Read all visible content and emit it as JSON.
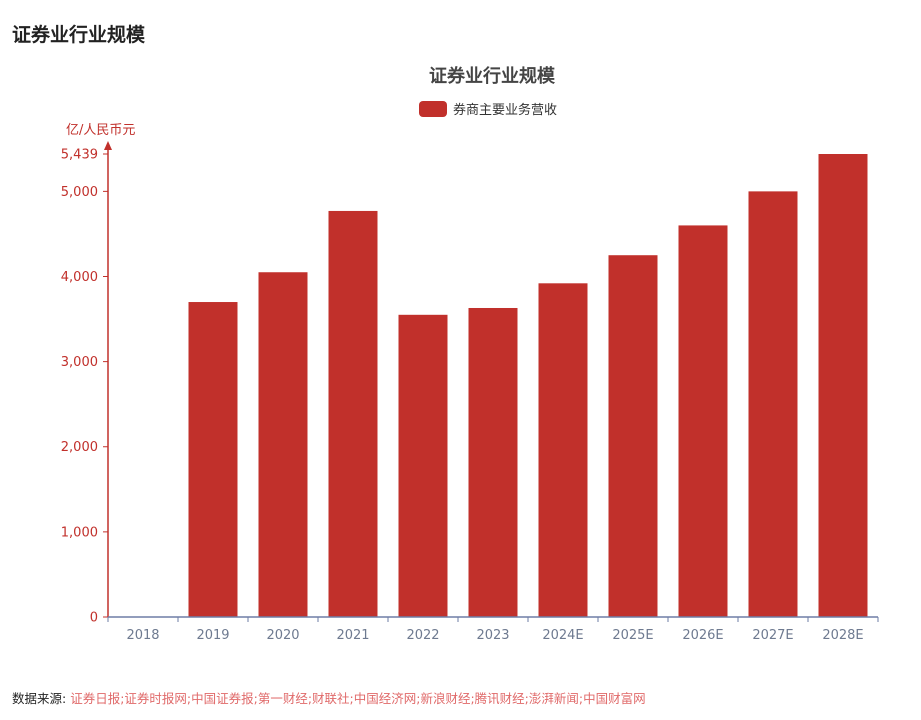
{
  "page": {
    "title": "证券业行业规模",
    "footer_label": "数据来源:",
    "footer_sources": "证券日报;证券时报网;中国证券报;第一财经;财联社;中国经济网;新浪财经;腾讯财经;澎湃新闻;中国财富网"
  },
  "chart_data": {
    "type": "bar",
    "title": "证券业行业规模",
    "xlabel": "",
    "ylabel": "亿/人民币元",
    "categories": [
      "2018",
      "2019",
      "2020",
      "2021",
      "2022",
      "2023",
      "2024E",
      "2025E",
      "2026E",
      "2027E",
      "2028E"
    ],
    "series": [
      {
        "name": "券商主要业务营收",
        "values": [
          0,
          3700,
          4050,
          4770,
          3550,
          3630,
          3920,
          4250,
          4600,
          5000,
          5439
        ]
      }
    ],
    "y_ticks": [
      "0",
      "1,000",
      "2,000",
      "3,000",
      "4,000",
      "5,000",
      "5,439"
    ],
    "y_tick_values": [
      0,
      1000,
      2000,
      3000,
      4000,
      5000,
      5439
    ],
    "ylim": [
      0,
      5439
    ],
    "grid": false,
    "legend": "top-center",
    "colors": {
      "bar": "#c1302b",
      "axis_y": "#c1302b",
      "axis_x": "#6e7da6",
      "tick_x_text": "#6e7a90",
      "title": "#444444"
    }
  }
}
